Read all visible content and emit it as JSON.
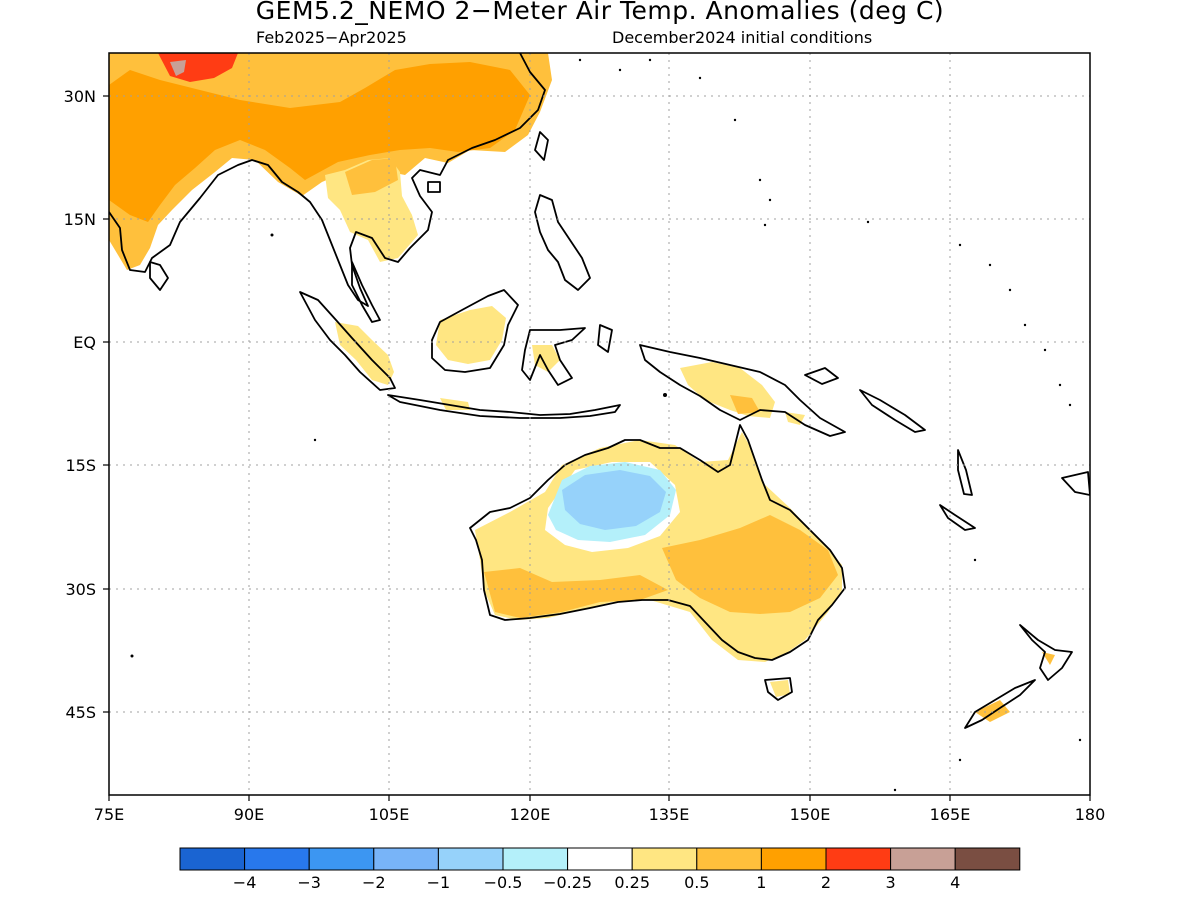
{
  "title": "GEM5.2_NEMO 2−Meter Air Temp. Anomalies (deg C)",
  "subtitle_left": "Feb2025−Apr2025",
  "subtitle_right": "December2024 initial conditions",
  "map": {
    "lon_range": [
      75,
      180
    ],
    "lat_range": [
      -55,
      35
    ],
    "x_ticks": [
      "75E",
      "90E",
      "105E",
      "120E",
      "135E",
      "150E",
      "165E",
      "180"
    ],
    "y_ticks": [
      "30N",
      "15N",
      "EQ",
      "15S",
      "30S",
      "45S"
    ]
  },
  "colorbar": {
    "labels": [
      "−4",
      "−3",
      "−2",
      "−1",
      "−0.5",
      "−0.25",
      "0.25",
      "0.5",
      "1",
      "2",
      "3",
      "4"
    ],
    "colors": [
      "#1a64d2",
      "#2878ec",
      "#3c96f2",
      "#78b4f8",
      "#96d2fa",
      "#b4f0fa",
      "#ffffff",
      "#ffe682",
      "#ffc03c",
      "#ffa000",
      "#ff3c14",
      "#c8a096",
      "#7a4e42"
    ]
  }
}
